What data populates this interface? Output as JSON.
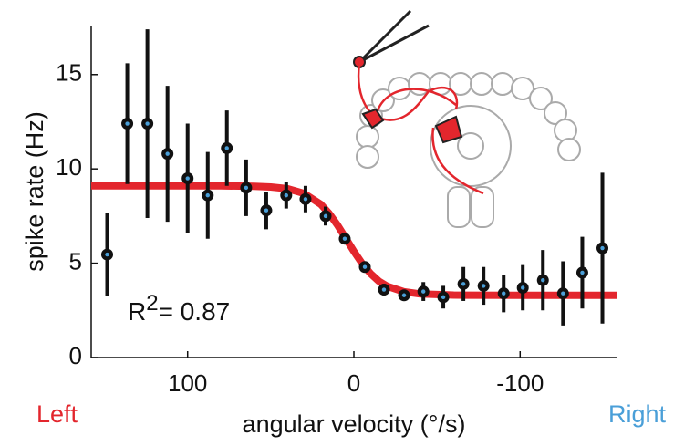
{
  "chart_data": {
    "type": "scatter",
    "y_label": "spike rate (Hz)",
    "x_label": "angular velocity (°/s)",
    "x_left_label": "Left",
    "x_right_label": "Right",
    "x_left_color": "#e3262d",
    "x_right_color": "#4a9fd8",
    "annotation": {
      "base": "R",
      "superscript": "2",
      "suffix": "= 0.87"
    },
    "xlim": [
      158,
      -158
    ],
    "ylim": [
      0,
      17.6
    ],
    "xticks": [
      100,
      0,
      -100
    ],
    "yticks": [
      0,
      5,
      10,
      15
    ],
    "marker_color": "#111111",
    "marker_center_color": "#4a9fd8",
    "x": [
      148.4,
      136.3,
      124.2,
      112.1,
      100,
      87.9,
      76.4,
      64.8,
      52.7,
      40.7,
      29.1,
      17.0,
      5.5,
      -6.6,
      -18.1,
      -30.2,
      -41.8,
      -53.8,
      -65.9,
      -78.0,
      -90.1,
      -101.6,
      -113.7,
      -125.8,
      -137.4,
      -149.5
    ],
    "values": [
      5.46,
      12.4,
      12.4,
      10.8,
      9.5,
      8.6,
      11.1,
      9.0,
      7.8,
      8.6,
      8.4,
      7.5,
      6.3,
      4.8,
      3.6,
      3.3,
      3.5,
      3.2,
      3.9,
      3.8,
      3.4,
      3.7,
      4.1,
      3.4,
      4.5,
      5.8
    ],
    "errors": [
      2.2,
      3.2,
      5.0,
      3.6,
      2.9,
      2.3,
      2.0,
      1.5,
      1.0,
      0.7,
      0.7,
      0.5,
      0.3,
      0.3,
      0.3,
      0.3,
      0.5,
      0.6,
      0.9,
      1.0,
      1.0,
      1.2,
      1.6,
      1.7,
      1.9,
      4.0
    ],
    "fit": {
      "type": "line",
      "color": "#e3262d",
      "x": [
        158,
        120,
        80,
        60,
        50,
        40,
        30,
        20,
        15,
        10,
        5,
        0,
        -5,
        -10,
        -15,
        -20,
        -30,
        -40,
        -60,
        -100,
        -158
      ],
      "values": [
        9.1,
        9.1,
        9.1,
        9.08,
        9.04,
        8.95,
        8.7,
        8.13,
        7.65,
        7.04,
        6.34,
        5.63,
        4.98,
        4.45,
        4.05,
        3.78,
        3.49,
        3.37,
        3.31,
        3.3,
        3.3
      ]
    }
  }
}
